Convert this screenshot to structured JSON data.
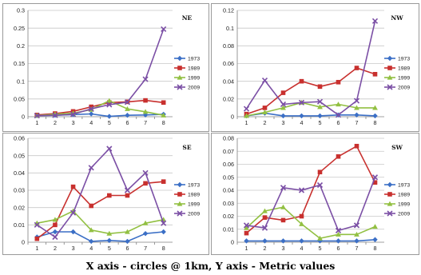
{
  "caption": "X axis - circles @ 1km, Y axis - Metric values",
  "series_colors": {
    "1973": "#3b6fc6",
    "1989": "#c8302e",
    "1999": "#92c042",
    "2009": "#7b4fa5"
  },
  "chart_data": [
    {
      "type": "line",
      "title": "NE",
      "x": [
        1,
        2,
        3,
        4,
        5,
        6,
        7,
        8
      ],
      "yticks": [
        "0",
        "0.05",
        "0.1",
        "0.15",
        "0.2",
        "0.25",
        "0.3"
      ],
      "ylim": [
        0,
        0.3
      ],
      "grid": true,
      "legend": "right",
      "series": [
        {
          "name": "1973",
          "values": [
            0.003,
            0.004,
            0.006,
            0.008,
            0.001,
            0.004,
            0.005,
            0.007
          ]
        },
        {
          "name": "1989",
          "values": [
            0.005,
            0.009,
            0.015,
            0.028,
            0.04,
            0.042,
            0.046,
            0.04
          ]
        },
        {
          "name": "1999",
          "values": [
            0.003,
            0.007,
            0.01,
            0.02,
            0.045,
            0.022,
            0.014,
            0.004
          ]
        },
        {
          "name": "2009",
          "values": [
            0.003,
            0.004,
            0.007,
            0.022,
            0.034,
            0.041,
            0.106,
            0.247
          ]
        }
      ]
    },
    {
      "type": "line",
      "title": "NW",
      "x": [
        1,
        2,
        3,
        4,
        5,
        6,
        7,
        8
      ],
      "yticks": [
        "0",
        "0.02",
        "0.04",
        "0.06",
        "0.08",
        "0.1",
        "0.12"
      ],
      "ylim": [
        0,
        0.12
      ],
      "grid": true,
      "legend": "right",
      "series": [
        {
          "name": "1973",
          "values": [
            0.001,
            0.004,
            0.001,
            0.001,
            0.001,
            0.002,
            0.002,
            0.001
          ]
        },
        {
          "name": "1989",
          "values": [
            0.003,
            0.01,
            0.027,
            0.04,
            0.034,
            0.039,
            0.055,
            0.048
          ]
        },
        {
          "name": "1999",
          "values": [
            0.001,
            0.005,
            0.01,
            0.016,
            0.011,
            0.014,
            0.01,
            0.01
          ]
        },
        {
          "name": "2009",
          "values": [
            0.009,
            0.041,
            0.014,
            0.016,
            0.017,
            0.002,
            0.018,
            0.108
          ]
        }
      ]
    },
    {
      "type": "line",
      "title": "SE",
      "x": [
        1,
        2,
        3,
        4,
        5,
        6,
        7,
        8
      ],
      "yticks": [
        "0",
        "0.01",
        "0.02",
        "0.03",
        "0.04",
        "0.05",
        "0.06"
      ],
      "ylim": [
        0,
        0.06
      ],
      "grid": true,
      "legend": "right",
      "series": [
        {
          "name": "1973",
          "values": [
            0.003,
            0.006,
            0.006,
            0.0005,
            0.001,
            0.0005,
            0.005,
            0.006
          ]
        },
        {
          "name": "1989",
          "values": [
            0.002,
            0.01,
            0.032,
            0.021,
            0.027,
            0.027,
            0.034,
            0.035
          ]
        },
        {
          "name": "1999",
          "values": [
            0.011,
            0.013,
            0.018,
            0.007,
            0.005,
            0.006,
            0.011,
            0.013
          ]
        },
        {
          "name": "2009",
          "values": [
            0.01,
            0.003,
            0.017,
            0.043,
            0.054,
            0.03,
            0.04,
            0.011
          ]
        }
      ]
    },
    {
      "type": "line",
      "title": "SW",
      "x": [
        1,
        2,
        3,
        4,
        5,
        6,
        7,
        8
      ],
      "yticks": [
        "0",
        "0.01",
        "0.02",
        "0.03",
        "0.04",
        "0.05",
        "0.06",
        "0.07",
        "0.08"
      ],
      "ylim": [
        0,
        0.08
      ],
      "grid": true,
      "legend": "right",
      "series": [
        {
          "name": "1973",
          "values": [
            0.001,
            0.001,
            0.001,
            0.001,
            0.001,
            0.001,
            0.001,
            0.002
          ]
        },
        {
          "name": "1989",
          "values": [
            0.007,
            0.019,
            0.017,
            0.02,
            0.054,
            0.066,
            0.074,
            0.046
          ]
        },
        {
          "name": "1999",
          "values": [
            0.011,
            0.024,
            0.027,
            0.014,
            0.003,
            0.006,
            0.006,
            0.012
          ]
        },
        {
          "name": "2009",
          "values": [
            0.013,
            0.011,
            0.042,
            0.04,
            0.044,
            0.009,
            0.013,
            0.05
          ]
        }
      ]
    }
  ]
}
